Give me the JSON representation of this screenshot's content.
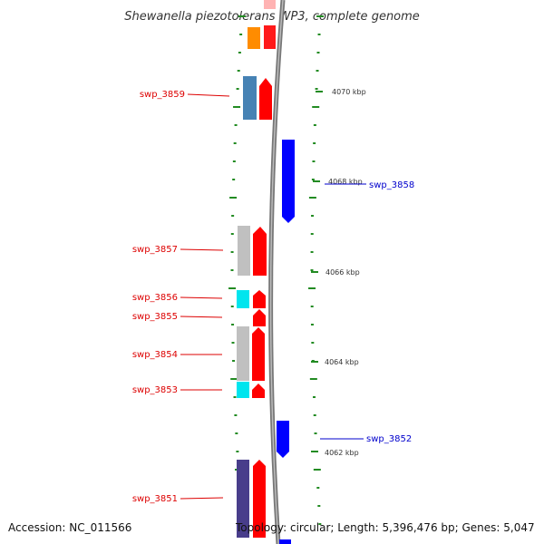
{
  "title": "Shewanella piezotolerans WP3, complete genome",
  "footer": {
    "accession": "Accession: NC_011566",
    "topology": "Topology: circular; Length: 5,396,476 bp; Genes: 5,047"
  },
  "colors": {
    "forward_gene": "#ff0000",
    "reverse_gene": "#0000ff",
    "forward_label": "#cc0000",
    "reverse_label": "#0000cc",
    "tick": "#228b22",
    "backbone": "#888888"
  },
  "position_ticks": [
    "4070 kbp",
    "4068 kbp",
    "4066 kbp",
    "4064 kbp",
    "4062 kbp"
  ],
  "forward_labels": [
    "swp_3859",
    "swp_3857",
    "swp_3856",
    "swp_3855",
    "swp_3854",
    "swp_3853",
    "swp_3851"
  ],
  "reverse_labels": [
    "swp_3858",
    "swp_3852"
  ]
}
